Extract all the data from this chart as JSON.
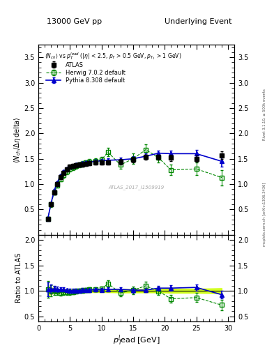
{
  "title_left": "13000 GeV pp",
  "title_right": "Underlying Event",
  "watermark": "ATLAS_2017_I1509919",
  "right_label_top": "Rivet 3.1.10, ≥ 500k events",
  "right_label_bot": "mcplots.cern.ch [arXiv:1306.3436]",
  "xlabel": "$p_{T}^{l}$ead [GeV]",
  "ylabel_main": "$\\langle N_{ch} / \\Delta \\eta$ delta$\\rangle$",
  "ylabel_ratio": "Ratio to ATLAS",
  "atlas_x": [
    1.5,
    2.0,
    2.5,
    3.0,
    3.5,
    4.0,
    4.5,
    5.0,
    5.5,
    6.0,
    6.5,
    7.0,
    7.5,
    8.0,
    9.0,
    10.0,
    11.0,
    13.0,
    15.0,
    17.0,
    19.0,
    21.0,
    25.0,
    29.0
  ],
  "atlas_y": [
    0.31,
    0.6,
    0.84,
    1.0,
    1.14,
    1.22,
    1.29,
    1.34,
    1.36,
    1.37,
    1.38,
    1.39,
    1.4,
    1.41,
    1.42,
    1.43,
    1.43,
    1.44,
    1.48,
    1.53,
    1.53,
    1.52,
    1.5,
    1.57
  ],
  "atlas_ey": [
    0.03,
    0.04,
    0.04,
    0.04,
    0.04,
    0.04,
    0.04,
    0.04,
    0.04,
    0.04,
    0.04,
    0.04,
    0.04,
    0.04,
    0.04,
    0.04,
    0.04,
    0.05,
    0.05,
    0.05,
    0.05,
    0.06,
    0.06,
    0.08
  ],
  "herwig_x": [
    1.5,
    2.0,
    2.5,
    3.0,
    3.5,
    4.0,
    4.5,
    5.0,
    5.5,
    6.0,
    6.5,
    7.0,
    7.5,
    8.0,
    9.0,
    10.0,
    11.0,
    13.0,
    15.0,
    17.0,
    19.0,
    21.0,
    25.0,
    29.0
  ],
  "herwig_y": [
    0.32,
    0.6,
    0.84,
    0.98,
    1.1,
    1.18,
    1.25,
    1.3,
    1.33,
    1.36,
    1.38,
    1.4,
    1.42,
    1.44,
    1.46,
    1.48,
    1.63,
    1.38,
    1.5,
    1.68,
    1.52,
    1.28,
    1.3,
    1.13
  ],
  "herwig_ey": [
    0.04,
    0.05,
    0.05,
    0.05,
    0.05,
    0.05,
    0.05,
    0.05,
    0.05,
    0.05,
    0.05,
    0.05,
    0.05,
    0.05,
    0.05,
    0.05,
    0.08,
    0.08,
    0.1,
    0.1,
    0.1,
    0.1,
    0.12,
    0.15
  ],
  "pythia_x": [
    1.5,
    2.0,
    2.5,
    3.0,
    3.5,
    4.0,
    4.5,
    5.0,
    5.5,
    6.0,
    6.5,
    7.0,
    7.5,
    8.0,
    9.0,
    10.0,
    11.0,
    13.0,
    15.0,
    17.0,
    19.0,
    21.0,
    25.0,
    29.0
  ],
  "pythia_y": [
    0.32,
    0.62,
    0.87,
    1.03,
    1.17,
    1.25,
    1.3,
    1.34,
    1.36,
    1.38,
    1.39,
    1.41,
    1.42,
    1.43,
    1.45,
    1.46,
    1.47,
    1.48,
    1.5,
    1.55,
    1.61,
    1.6,
    1.6,
    1.45
  ],
  "pythia_ey": [
    0.03,
    0.03,
    0.03,
    0.03,
    0.03,
    0.03,
    0.03,
    0.03,
    0.03,
    0.03,
    0.03,
    0.03,
    0.03,
    0.03,
    0.03,
    0.03,
    0.04,
    0.04,
    0.05,
    0.05,
    0.05,
    0.06,
    0.07,
    0.1
  ],
  "atlas_color": "#000000",
  "herwig_color": "#008800",
  "pythia_color": "#0000cc",
  "band_color": "#ccff00",
  "ylim_main": [
    0.0,
    3.75
  ],
  "ylim_ratio": [
    0.4,
    2.1
  ],
  "xlim": [
    0,
    31
  ],
  "yticks_main": [
    0.5,
    1.0,
    1.5,
    2.0,
    2.5,
    3.0,
    3.5
  ],
  "yticks_ratio": [
    0.5,
    1.0,
    1.5,
    2.0
  ]
}
